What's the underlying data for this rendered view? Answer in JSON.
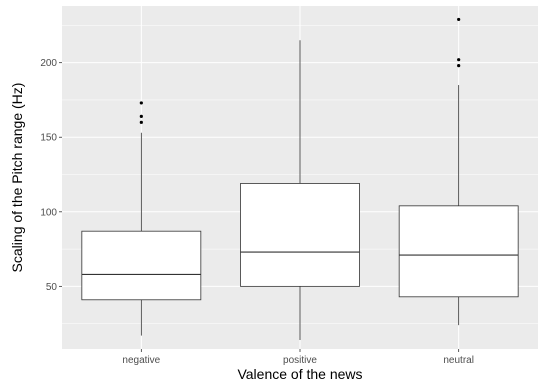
{
  "chart_data": {
    "type": "boxplot",
    "xlabel": "Valence of the news",
    "ylabel": "Scaling of the Pitch range (Hz)",
    "categories": [
      "negative",
      "positive",
      "neutral"
    ],
    "y_ticks": [
      50,
      100,
      150,
      200
    ],
    "ylim": [
      8,
      238
    ],
    "grid": true,
    "colors": {
      "panel_background": "#ebebeb",
      "grid_major": "#ffffff",
      "box_fill": "#ffffff",
      "box_stroke": "#333333",
      "outlier": "#000000"
    },
    "boxes": [
      {
        "category": "negative",
        "whisker_low": 17,
        "q1": 41,
        "median": 58,
        "q3": 87,
        "whisker_high": 153,
        "outliers": [
          160,
          164,
          173
        ]
      },
      {
        "category": "positive",
        "whisker_low": 14,
        "q1": 50,
        "median": 73,
        "q3": 119,
        "whisker_high": 215,
        "outliers": []
      },
      {
        "category": "neutral",
        "whisker_low": 24,
        "q1": 43,
        "median": 71,
        "q3": 104,
        "whisker_high": 185,
        "outliers": [
          198,
          202,
          229
        ]
      }
    ]
  }
}
